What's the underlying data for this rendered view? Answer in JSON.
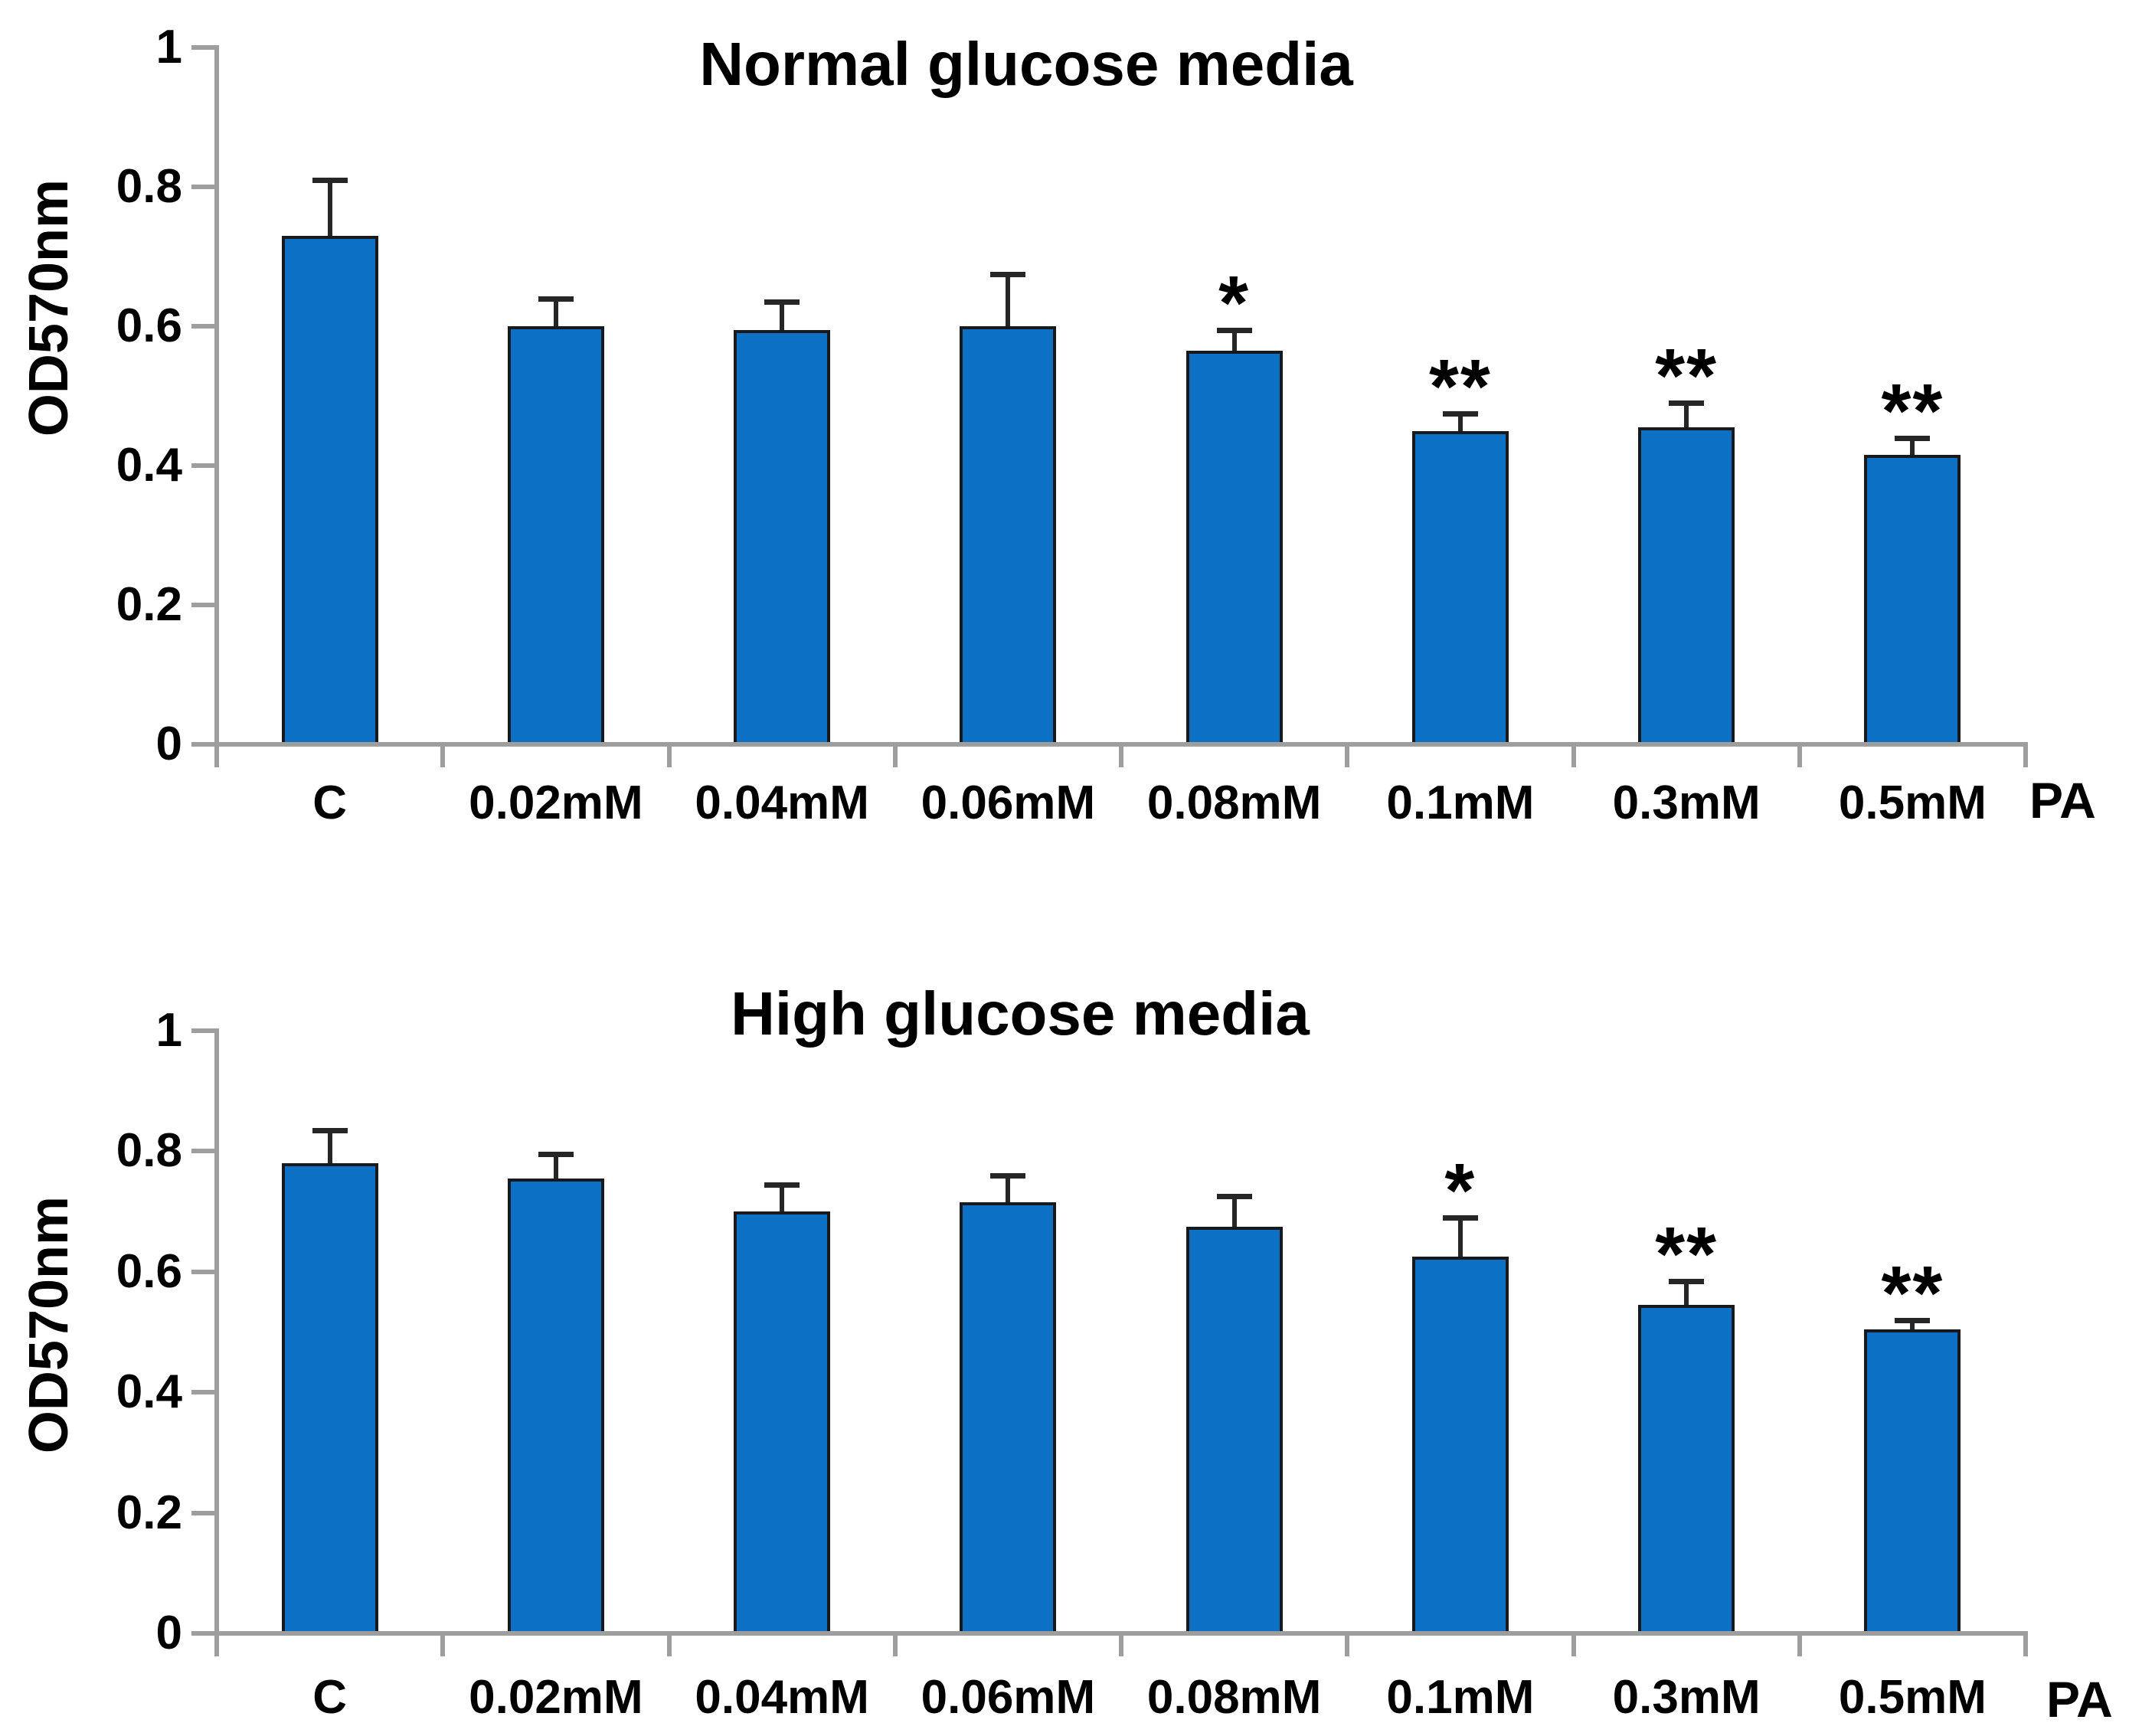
{
  "figure": {
    "background_color": "#ffffff",
    "bar_fill_color": "#0c70c4",
    "bar_border_color": "#17191c",
    "axis_color": "#9e9e9e",
    "error_bar_color": "#262626",
    "text_color": "#000000"
  },
  "chart_data": [
    {
      "type": "bar",
      "title": "Normal glucose media",
      "ylabel": "OD570nm",
      "x_axis_suffix_label": "PA",
      "ylim": [
        0,
        1
      ],
      "ytick_labels": [
        "0",
        "0.2",
        "0.4",
        "0.6",
        "0.8",
        "1"
      ],
      "yticks": [
        0,
        0.2,
        0.4,
        0.6,
        0.8,
        1
      ],
      "grid": "off",
      "legend": "none",
      "error_bars": "upper",
      "categories": [
        "C",
        "0.02mM",
        "0.04mM",
        "0.06mM",
        "0.08mM",
        "0.1mM",
        "0.3mM",
        "0.5mM"
      ],
      "values": [
        0.73,
        0.6,
        0.595,
        0.6,
        0.565,
        0.45,
        0.455,
        0.415
      ],
      "errors_upper": [
        0.08,
        0.04,
        0.04,
        0.075,
        0.03,
        0.025,
        0.035,
        0.025
      ],
      "significance": [
        "",
        "",
        "",
        "",
        "*",
        "**",
        "**",
        "**"
      ]
    },
    {
      "type": "bar",
      "title": "High glucose media",
      "ylabel": "OD570nm",
      "x_axis_suffix_label": "PA",
      "ylim": [
        0,
        1
      ],
      "ytick_labels": [
        "0",
        "0.2",
        "0.4",
        "0.6",
        "0.8",
        "1"
      ],
      "yticks": [
        0,
        0.2,
        0.4,
        0.6,
        0.8,
        1
      ],
      "grid": "off",
      "legend": "none",
      "error_bars": "upper",
      "categories": [
        "C",
        "0.02mM",
        "0.04mM",
        "0.06mM",
        "0.08mM",
        "0.1mM",
        "0.3mM",
        "0.5mM"
      ],
      "values": [
        0.78,
        0.755,
        0.7,
        0.715,
        0.675,
        0.625,
        0.545,
        0.505
      ],
      "errors_upper": [
        0.055,
        0.04,
        0.045,
        0.045,
        0.05,
        0.065,
        0.04,
        0.015
      ],
      "significance": [
        "",
        "",
        "",
        "",
        "",
        "*",
        "**",
        "**"
      ]
    }
  ]
}
